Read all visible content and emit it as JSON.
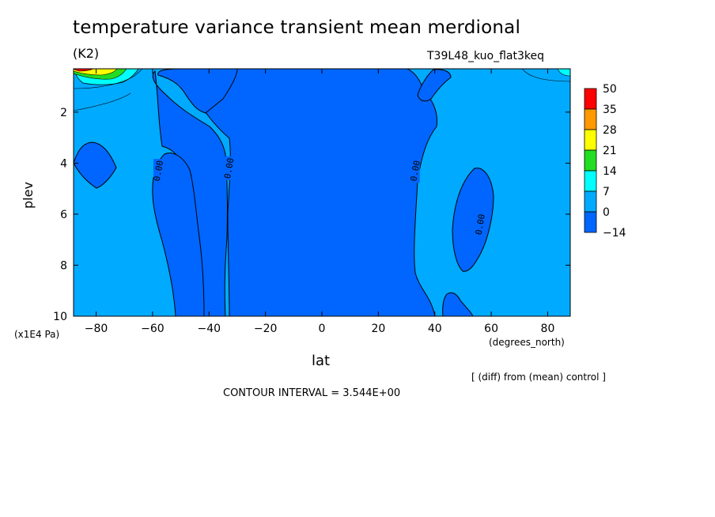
{
  "chart_data": {
    "type": "contour",
    "title": "temperature variance transient mean merdional",
    "units": "(K2)",
    "run_label": "T39L48_kuo_flat3keq",
    "xlabel": "lat",
    "xunit": "(degrees_north)",
    "ylabel": "plev",
    "yunit": "(x1E4 Pa)",
    "xlim": [
      -88,
      88
    ],
    "ylim": [
      10,
      0.3
    ],
    "xticks": [
      -80,
      -60,
      -40,
      -20,
      0,
      20,
      40,
      60,
      80
    ],
    "xtick_labels": [
      "−80",
      "−60",
      "−40",
      "−20",
      "0",
      "20",
      "40",
      "60",
      "80"
    ],
    "yticks": [
      2,
      4,
      6,
      8,
      10
    ],
    "ytick_labels": [
      "2",
      "4",
      "6",
      "8",
      "10"
    ],
    "colorbar": {
      "levels": [
        "50",
        "35",
        "28",
        "21",
        "14",
        "7",
        "0",
        "−14"
      ],
      "colors": [
        "#ff0000",
        "#ff9900",
        "#ffff00",
        "#22dd22",
        "#00ffff",
        "#00aaff",
        "#0066ff"
      ]
    },
    "contour_labels": [
      "0.00",
      "0.00",
      "0.00",
      "0.00"
    ],
    "note": "[ (diff) from (mean) control ]",
    "contour_interval": "CONTOUR INTERVAL = 3.544E+00"
  }
}
